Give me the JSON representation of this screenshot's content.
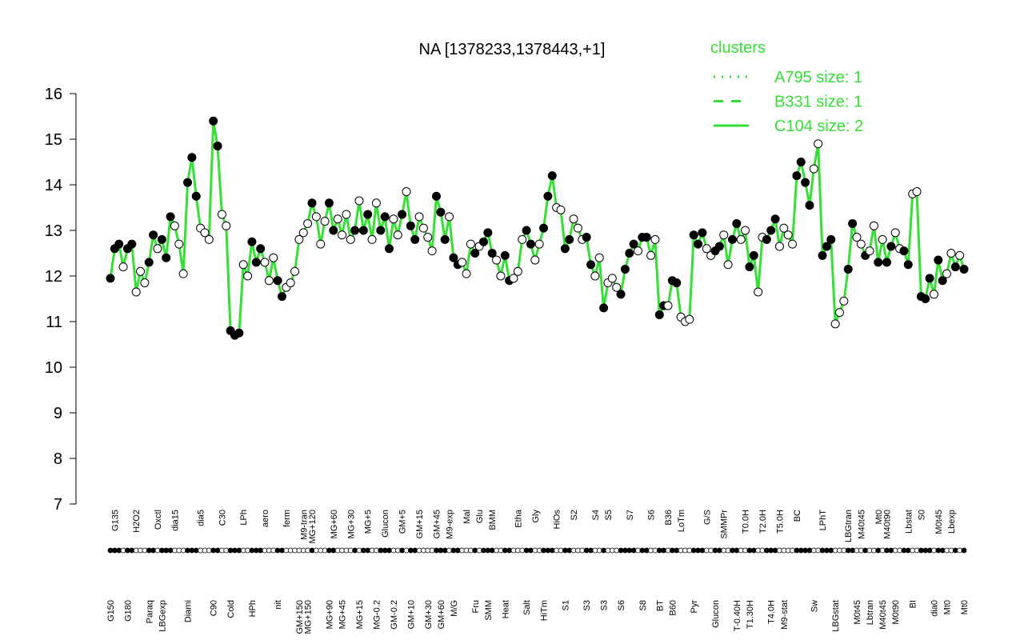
{
  "chart_data": {
    "type": "line",
    "title": "NA [1378233,1378443,+1]",
    "ylim": [
      7,
      16
    ],
    "yticks": [
      7,
      8,
      9,
      10,
      11,
      12,
      13,
      14,
      15,
      16
    ],
    "line_color": "#33e033",
    "legend": {
      "title": "clusters",
      "entries": [
        {
          "name": "A795 size: 1",
          "dash": "dotted"
        },
        {
          "name": "B331 size: 1",
          "dash": "dashed"
        },
        {
          "name": "C104 size: 2",
          "dash": "solid"
        }
      ]
    },
    "categories": [
      "G150",
      "G135",
      null,
      null,
      "G180",
      null,
      "H2O2",
      null,
      null,
      "Paraq",
      null,
      "Oxctl",
      "LBGexp",
      null,
      null,
      "dia15",
      null,
      null,
      "Diami",
      null,
      null,
      "dia5",
      null,
      null,
      "C90",
      null,
      "C30",
      null,
      "Cold",
      null,
      null,
      "LPh",
      null,
      "HPh",
      null,
      null,
      "aero",
      null,
      null,
      "nit",
      null,
      "ferm",
      null,
      null,
      "GM+150",
      "M9-tran",
      "MG+150",
      "MG+120",
      null,
      null,
      null,
      "MG+90",
      "MG+60",
      null,
      "MG+45",
      null,
      "MG+30",
      null,
      "MG+15",
      null,
      "MG+5",
      null,
      "MG-0.2",
      null,
      "Glucon",
      null,
      "GM-0.2",
      null,
      "GM+5",
      null,
      "GM+10",
      null,
      "GM+15",
      null,
      "GM+30",
      null,
      "GM+45",
      "GM+60",
      null,
      "M9-exp",
      "M/G",
      null,
      null,
      "Mal",
      null,
      "Fru",
      "Glu",
      null,
      "SMM",
      "BMM",
      null,
      null,
      "Heat",
      null,
      null,
      "Etha",
      null,
      "Salt",
      null,
      "Gly",
      null,
      "HiTm",
      null,
      null,
      "HiOs",
      null,
      "S1",
      null,
      "S2",
      null,
      null,
      "S3",
      null,
      "S4",
      null,
      "S3",
      "S5",
      null,
      null,
      "S6",
      null,
      "S7",
      null,
      null,
      "S8",
      null,
      "S6",
      null,
      "BT",
      null,
      "B36",
      "B60",
      null,
      "LoTm",
      null,
      null,
      "Pyr",
      null,
      null,
      "G/S",
      null,
      "Glucon",
      null,
      "SMMPr",
      null,
      null,
      "T-0.40H",
      null,
      "T0.0H",
      "T1.30H",
      null,
      null,
      "T2.0H",
      null,
      "T4.0H",
      null,
      "T5.0H",
      "M9-stat",
      null,
      null,
      "BC",
      null,
      null,
      null,
      "Sw",
      null,
      "LPhT",
      null,
      null,
      "LBGstat",
      null,
      null,
      "LBGtran",
      null,
      "M0t45",
      "M40t45",
      null,
      "Lbtran",
      null,
      "Mt0",
      "M40t45",
      "M40t90",
      null,
      "M0t90",
      null,
      null,
      "Lbstat",
      "BI",
      null,
      "S0",
      null,
      null,
      "dia0",
      "M0t45",
      null,
      "Mt0",
      "Lbexp",
      null,
      null,
      "Mt0"
    ],
    "values": [
      11.95,
      12.6,
      12.7,
      12.2,
      12.6,
      12.7,
      11.65,
      12.1,
      11.85,
      12.3,
      12.9,
      12.6,
      12.8,
      12.4,
      13.3,
      13.1,
      12.7,
      12.05,
      14.05,
      14.6,
      13.75,
      13.05,
      12.95,
      12.8,
      15.4,
      14.85,
      13.35,
      13.1,
      10.8,
      10.7,
      10.75,
      12.25,
      12.0,
      12.75,
      12.3,
      12.6,
      12.3,
      11.9,
      12.4,
      11.9,
      11.55,
      11.75,
      11.85,
      12.1,
      12.8,
      12.95,
      13.15,
      13.6,
      13.3,
      12.7,
      13.2,
      13.6,
      13.0,
      13.25,
      12.9,
      13.35,
      12.8,
      13.0,
      13.65,
      13.0,
      13.35,
      12.8,
      13.6,
      13.0,
      13.3,
      12.6,
      13.25,
      12.9,
      13.35,
      13.85,
      13.1,
      12.8,
      13.3,
      13.05,
      12.85,
      12.55,
      13.75,
      13.4,
      12.8,
      13.3,
      12.4,
      12.25,
      12.3,
      12.05,
      12.7,
      12.5,
      12.65,
      12.75,
      12.95,
      12.5,
      12.35,
      12.0,
      12.45,
      11.9,
      11.95,
      12.1,
      12.8,
      13.0,
      12.7,
      12.35,
      12.7,
      13.05,
      13.75,
      14.2,
      13.5,
      13.45,
      12.6,
      12.8,
      13.25,
      13.05,
      12.8,
      12.85,
      12.25,
      12.0,
      12.4,
      11.3,
      11.85,
      11.95,
      11.75,
      11.6,
      12.15,
      12.5,
      12.7,
      12.55,
      12.85,
      12.85,
      12.45,
      12.8,
      11.15,
      11.35,
      11.35,
      11.9,
      11.85,
      11.1,
      11.0,
      11.05,
      12.9,
      12.7,
      12.95,
      12.6,
      12.45,
      12.55,
      12.65,
      12.9,
      12.25,
      12.8,
      13.15,
      12.8,
      13.0,
      12.2,
      12.45,
      11.65,
      12.85,
      12.8,
      13.0,
      13.25,
      12.65,
      13.05,
      12.9,
      12.7,
      14.2,
      14.5,
      14.05,
      13.55,
      14.35,
      14.9,
      12.45,
      12.65,
      12.8,
      10.95,
      11.2,
      11.45,
      12.15,
      13.15,
      12.85,
      12.7,
      12.45,
      12.55,
      13.1,
      12.3,
      12.8,
      12.3,
      12.65,
      12.95,
      12.6,
      12.55,
      12.25,
      13.8,
      13.85,
      11.55,
      11.5,
      11.95,
      11.6,
      12.35,
      11.9,
      12.05,
      12.5,
      12.2,
      12.45,
      12.15
    ],
    "point_fill": [
      "black",
      "black",
      "black",
      "white",
      "black",
      "black",
      "white",
      "white",
      "white",
      "black",
      "black",
      "white",
      "black",
      "black",
      "black",
      "white",
      "white",
      "white",
      "black",
      "black",
      "black",
      "white",
      "white",
      "white",
      "black",
      "black",
      "white",
      "white",
      "black",
      "black",
      "black",
      "white",
      "white",
      "black",
      "black",
      "black",
      "white",
      "white",
      "white",
      "black",
      "black",
      "white",
      "white",
      "white",
      "white",
      "white",
      "white",
      "black",
      "white",
      "white",
      "white",
      "black",
      "black",
      "white",
      "white",
      "white",
      "white",
      "black",
      "white",
      "black",
      "black",
      "white",
      "white",
      "black",
      "black",
      "black",
      "white",
      "white",
      "black",
      "white",
      "black",
      "black",
      "white",
      "white",
      "white",
      "white",
      "black",
      "black",
      "black",
      "white",
      "black",
      "black",
      "white",
      "white",
      "white",
      "black",
      "white",
      "black",
      "black",
      "black",
      "white",
      "white",
      "black",
      "black",
      "white",
      "white",
      "white",
      "black",
      "black",
      "white",
      "white",
      "black",
      "black",
      "black",
      "white",
      "white",
      "black",
      "black",
      "white",
      "white",
      "white",
      "black",
      "black",
      "white",
      "white",
      "black",
      "white",
      "white",
      "white",
      "black",
      "black",
      "black",
      "black",
      "white",
      "black",
      "black",
      "white",
      "white",
      "black",
      "black",
      "white",
      "black",
      "black",
      "white",
      "white",
      "white",
      "black",
      "black",
      "black",
      "white",
      "white",
      "black",
      "black",
      "white",
      "white",
      "black",
      "black",
      "white",
      "white",
      "black",
      "black",
      "white",
      "white",
      "black",
      "black",
      "black",
      "white",
      "white",
      "white",
      "white",
      "black",
      "black",
      "black",
      "black",
      "white",
      "white",
      "black",
      "black",
      "black",
      "white",
      "white",
      "white",
      "black",
      "black",
      "white",
      "white",
      "black",
      "white",
      "white",
      "black",
      "white",
      "black",
      "black",
      "white",
      "white",
      "black",
      "black",
      "white",
      "white",
      "black",
      "black",
      "black",
      "white",
      "black",
      "black",
      "white",
      "white",
      "black",
      "white",
      "black"
    ]
  }
}
